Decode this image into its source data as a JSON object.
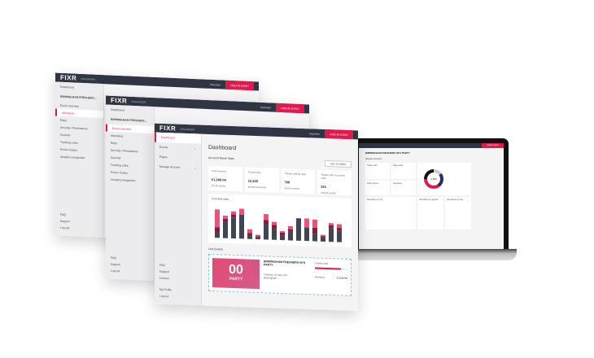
{
  "brand": {
    "logo": "FIXR",
    "section": "ORGANISER",
    "accent": "#e0194f",
    "header_bg": "#2f3542"
  },
  "header": {
    "user": "Organiser",
    "create_event": "CREATE EVENT"
  },
  "back_window": {
    "back_link": "Dashboard",
    "event_name": "BIRMINGHAM FRESHERS...",
    "items": [
      "Event overview",
      "Attendees",
      "Reps",
      "Security / Permissions",
      "Scanner",
      "Tracking Links",
      "Promo Codes",
      "Analytics integration"
    ],
    "active": 1,
    "bottom": [
      "FAQ",
      "Support",
      "Log out"
    ]
  },
  "middle_window": {
    "back_link": "Dashboard",
    "event_name": "BIRMINGHAM FRESHERS...",
    "items": [
      "Event overview",
      "Attendees",
      "Reps",
      "Security / Permissions",
      "Scanner",
      "Tracking Links",
      "Promo Codes",
      "Analytics integration"
    ],
    "active": 0,
    "bottom": [
      "FAQ",
      "Support",
      "Log out"
    ]
  },
  "front_window": {
    "sidebar": {
      "items": [
        {
          "label": "Dashboard"
        },
        {
          "label": "Events"
        },
        {
          "label": "Pages"
        },
        {
          "label": "Manage Account"
        }
      ],
      "bottom": [
        "FAQ",
        "Support",
        "Contact",
        "My Profile",
        "Log out"
      ]
    },
    "page_title": "Dashboard",
    "stats_title": "Account Name Stats",
    "range_select": "Last 12 weeks",
    "cards": [
      {
        "label": "Total revenue",
        "value": "£1,299.00",
        "note": "for all events"
      },
      {
        "label": "Tickets sold",
        "value": "12,345",
        "note": "across all events"
      },
      {
        "label": "Tickets sold by reps",
        "value": "768",
        "note": "across events"
      },
      {
        "label": "Tickets sold via promo code",
        "value": "321",
        "note": "across events"
      }
    ],
    "chart_title": "Live ticket sales",
    "live_events_title": "Live Events",
    "event": {
      "name": "BIRMINGHAM FRESHERS 00'S PARTY",
      "date": "Tuesday, 19 Sep 2017",
      "venue": "Birmingham",
      "poster_big": "00",
      "poster_small": "PARTY",
      "tickets_label": "Tickets sold",
      "tickets_progress": 0.8,
      "revenue_label": "Revenue",
      "revenue": "£1,234.00"
    }
  },
  "chart_data": {
    "type": "bar",
    "stacked": true,
    "series": [
      {
        "color": "#3f4756",
        "values": [
          8,
          22,
          28,
          32,
          5,
          3,
          20,
          15,
          6,
          12,
          30,
          18,
          10,
          5,
          18,
          15
        ]
      },
      {
        "color": "#8b1a3a",
        "values": [
          6,
          4,
          4,
          0,
          3,
          1,
          6,
          5,
          4,
          3,
          0,
          0,
          8,
          2,
          4,
          4
        ]
      },
      {
        "color": "#e8537a",
        "values": [
          24,
          4,
          4,
          8,
          5,
          2,
          8,
          4,
          2,
          4,
          0,
          12,
          11,
          2,
          3,
          5
        ]
      }
    ],
    "ylim": [
      0,
      50
    ],
    "grid": false
  },
  "laptop": {
    "event_title": "BIRMINGHAM FRESHERS 00'S PARTY",
    "overview": "Attendee Overview",
    "donut_total": "4,700",
    "widgets": [
      "Tickets sold",
      "Page views",
      "Total revenue",
      "Attendees",
      "Attendance by city",
      "Attendance by gender",
      "Attendance by age"
    ]
  }
}
